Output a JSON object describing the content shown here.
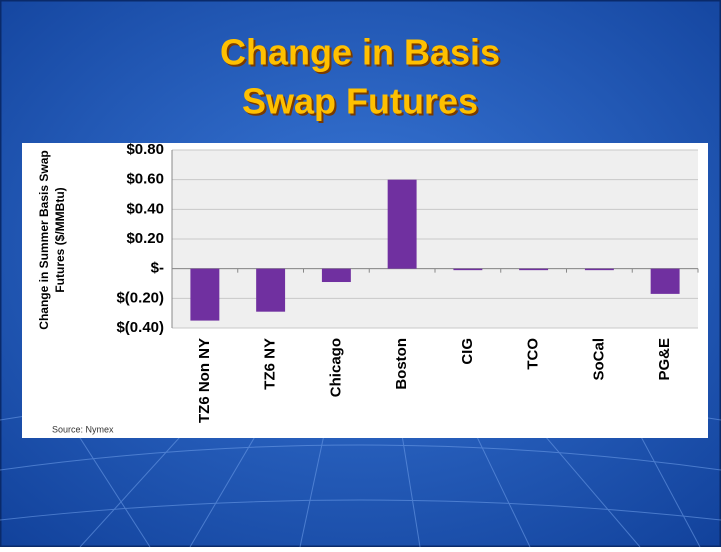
{
  "chart_data": {
    "type": "bar",
    "title": [
      "Change in Basis",
      "Swap Futures"
    ],
    "ylabel": [
      "Change in Summer Basis Swap",
      "Futures ($/MMBtu)"
    ],
    "annotation": "Source: Nymex",
    "categories": [
      "TZ6 Non NY",
      "TZ6 NY",
      "Chicago",
      "Boston",
      "CIG",
      "TCO",
      "SoCal",
      "PG&E"
    ],
    "values": [
      -0.35,
      -0.29,
      -0.09,
      0.6,
      -0.01,
      -0.01,
      -0.01,
      -0.17
    ],
    "color": "#7030a0",
    "ylim": [
      -0.4,
      0.8
    ],
    "yticks": [
      {
        "value": -0.4,
        "label": "$(0.40)"
      },
      {
        "value": -0.2,
        "label": "$(0.20)"
      },
      {
        "value": 0,
        "label": "$-"
      },
      {
        "value": 0.2,
        "label": "$0.20"
      },
      {
        "value": 0.4,
        "label": "$0.40"
      },
      {
        "value": 0.6,
        "label": "$0.60"
      },
      {
        "value": 0.8,
        "label": "$0.80"
      }
    ],
    "grid": true
  }
}
